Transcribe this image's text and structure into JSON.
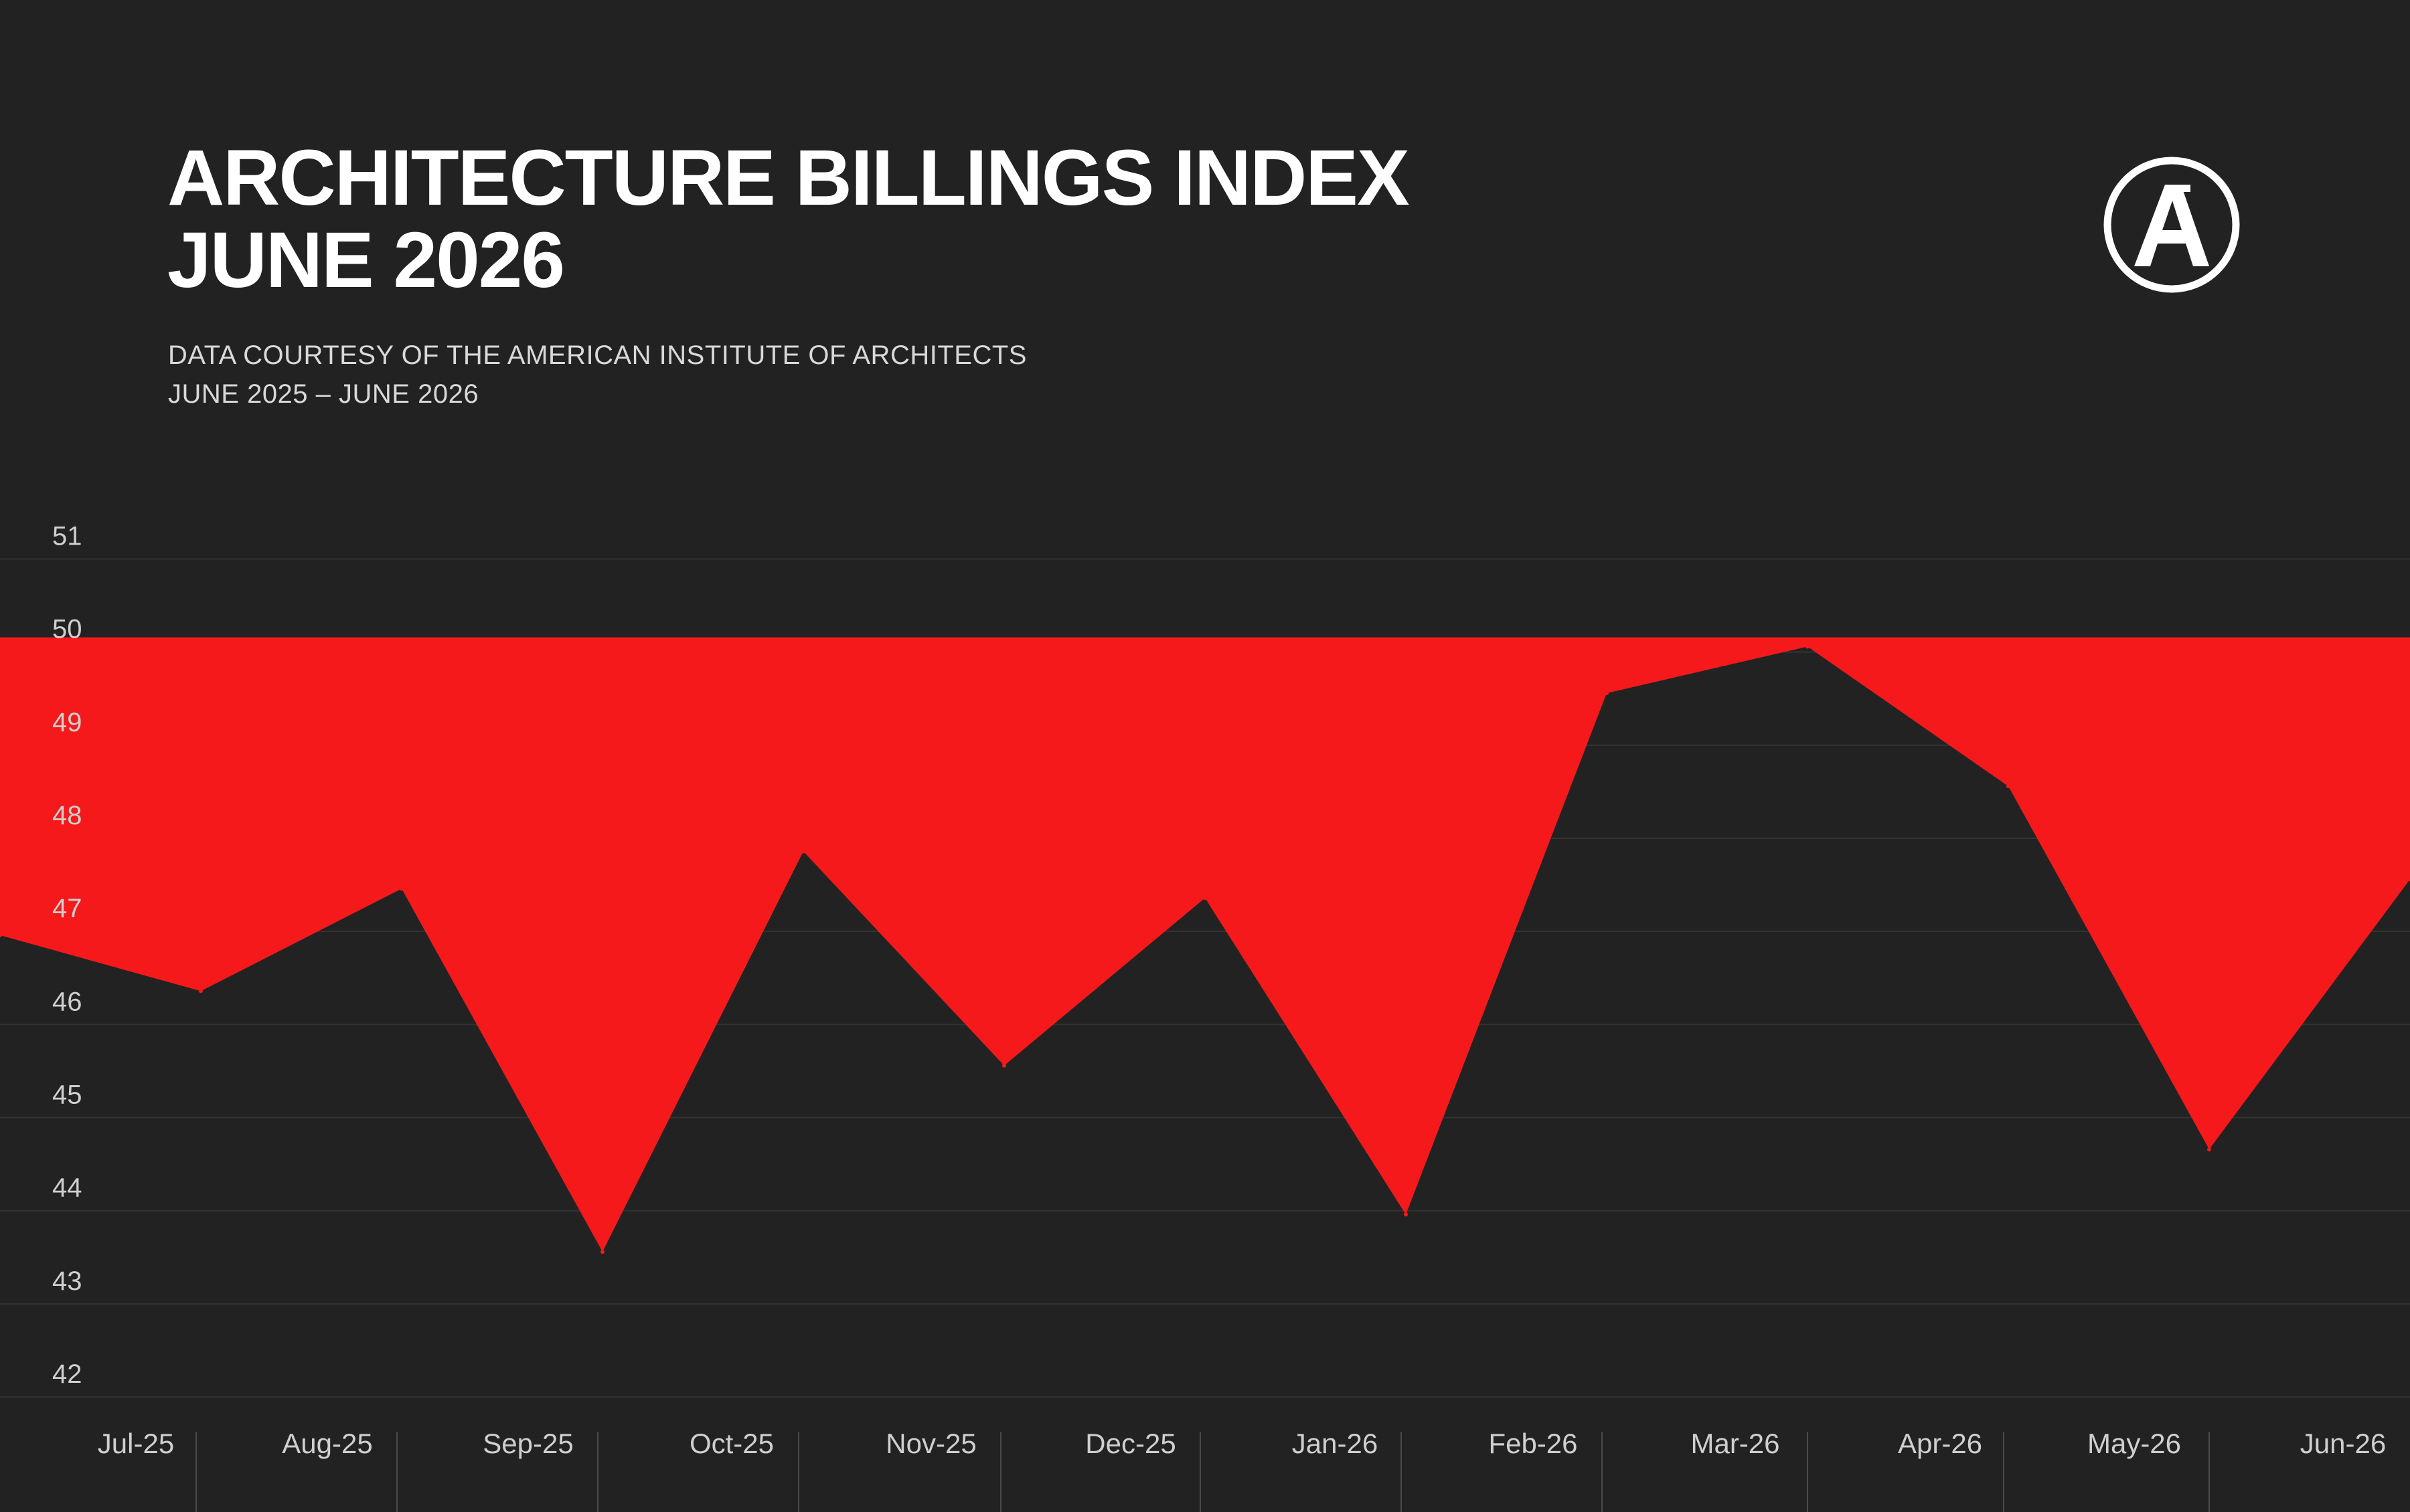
{
  "header": {
    "title_line1": "ARCHITECTURE BILLINGS INDEX",
    "title_line2": "JUNE 2026",
    "subtitle_line1": "DATA COURTESY OF THE AMERICAN INSTITUTE OF ARCHITECTS",
    "subtitle_line2": "JUNE 2025 – JUNE 2026"
  },
  "logo": {
    "icon": "archdaily-a-logo-icon",
    "letter": "A"
  },
  "colors": {
    "background": "#222223",
    "fill": "#f5191b",
    "text": "#ffffff",
    "tick_text": "#cfcfcf",
    "grid": "#333334"
  },
  "chart_data": {
    "type": "area",
    "baseline": 49.9,
    "categories": [
      "Jul-25",
      "Aug-25",
      "Sep-25",
      "Oct-25",
      "Nov-25",
      "Dec-25",
      "Jan-26",
      "Feb-26",
      "Mar-26",
      "Apr-26",
      "May-26",
      "Jun-26"
    ],
    "x": [
      "Jun-25",
      "Jul-25",
      "Aug-25",
      "Sep-25",
      "Oct-25",
      "Nov-25",
      "Dec-25",
      "Jan-26",
      "Feb-26",
      "Mar-26",
      "Apr-26",
      "May-26",
      "Jun-26"
    ],
    "values": [
      46.7,
      46.1,
      47.2,
      43.3,
      47.6,
      45.3,
      47.1,
      43.7,
      49.3,
      49.8,
      48.3,
      44.4,
      47.3
    ],
    "yticks": [
      51,
      50,
      49,
      48,
      47,
      46,
      45,
      44,
      43,
      42
    ],
    "ylim": [
      41.8,
      51.2
    ],
    "grid": true,
    "title": "",
    "xlabel": "",
    "ylabel": ""
  }
}
